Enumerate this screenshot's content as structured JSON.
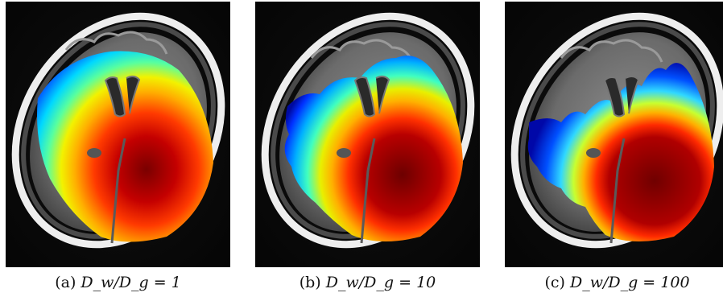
{
  "figure": {
    "panels": [
      {
        "id": "a",
        "caption_label": "(a)",
        "caption_math": "D_w/D_g = 1",
        "ratio": 1,
        "colormap": "jet"
      },
      {
        "id": "b",
        "caption_label": "(b)",
        "caption_math": "D_w/D_g = 10",
        "ratio": 10,
        "colormap": "jet"
      },
      {
        "id": "c",
        "caption_label": "(c)",
        "caption_math": "D_w/D_g = 100",
        "ratio": 100,
        "colormap": "jet"
      }
    ]
  }
}
